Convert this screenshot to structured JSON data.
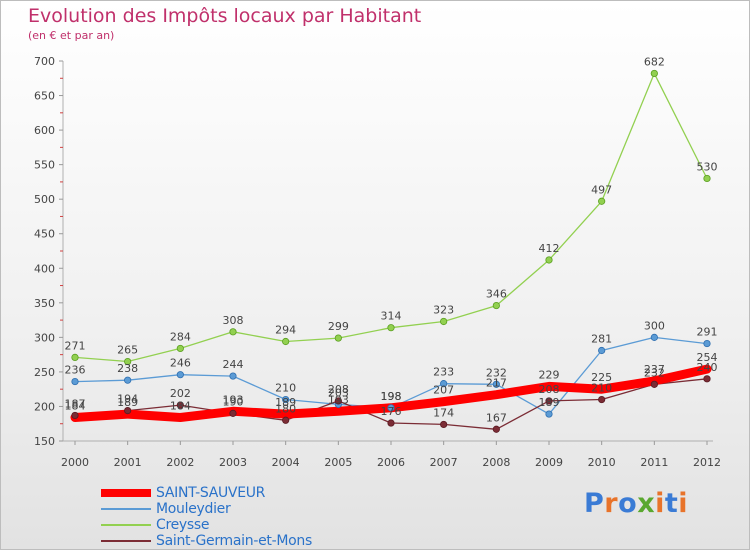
{
  "header": {
    "title": "Evolution des Impôts locaux par Habitant",
    "subtitle": "(en € et par an)"
  },
  "logo": {
    "text": "Proxiti",
    "letter_colors": [
      "#3a7bd5",
      "#e8732a",
      "#3a7bd5",
      "#5aa82f",
      "#e8732a",
      "#3a7bd5",
      "#e8732a"
    ]
  },
  "chart_data": {
    "type": "line",
    "title": "Evolution des Impôts locaux par Habitant",
    "subtitle": "(en € et par an)",
    "xlabel": "",
    "ylabel": "",
    "x": [
      "2000",
      "2001",
      "2002",
      "2003",
      "2004",
      "2005",
      "2006",
      "2007",
      "2008",
      "2009",
      "2010",
      "2011",
      "2012"
    ],
    "ylim": [
      150,
      700
    ],
    "yticks": [
      150,
      200,
      250,
      300,
      350,
      400,
      450,
      500,
      550,
      600,
      650,
      700
    ],
    "grid": false,
    "legend_position": "bottom-left",
    "series": [
      {
        "name": "SAINT-SAUVEUR",
        "color": "#ff0000",
        "values": [
          184,
          189,
          184,
          193,
          189,
          193,
          198,
          207,
          217,
          229,
          225,
          237,
          254
        ]
      },
      {
        "name": "Mouleydier",
        "color": "#5b9bd5",
        "values": [
          236,
          238,
          246,
          244,
          210,
          203,
          198,
          233,
          232,
          189,
          281,
          300,
          291
        ]
      },
      {
        "name": "Creysse",
        "color": "#92d050",
        "values": [
          271,
          265,
          284,
          308,
          294,
          299,
          314,
          323,
          346,
          412,
          497,
          682,
          530
        ]
      },
      {
        "name": "Saint-Germain-et-Mons",
        "color": "#7b2c35",
        "values": [
          187,
          194,
          202,
          190,
          180,
          208,
          176,
          174,
          167,
          208,
          210,
          232,
          240
        ]
      }
    ]
  }
}
